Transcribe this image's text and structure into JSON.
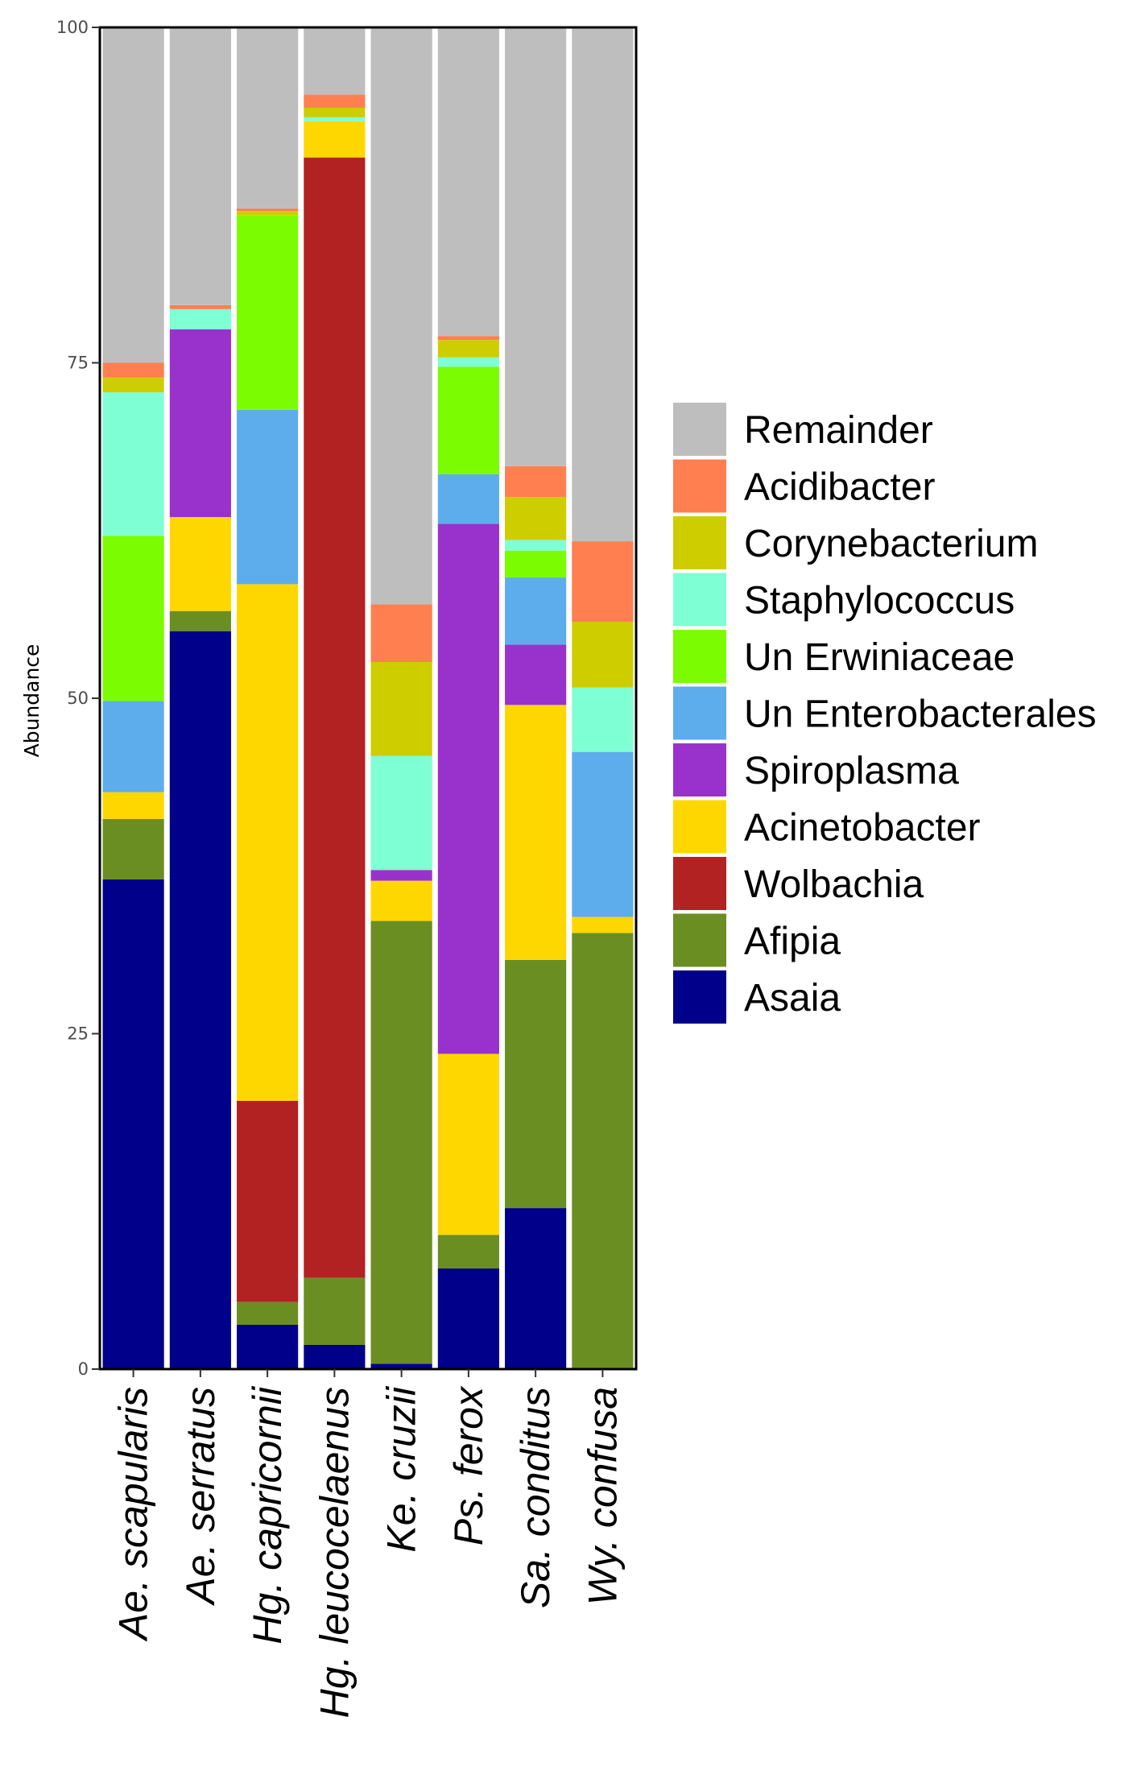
{
  "chart_data": {
    "type": "bar",
    "stacked": true,
    "title": "",
    "xlabel": "",
    "ylabel": "Abundance",
    "ylim": [
      0,
      100
    ],
    "yticks": [
      0,
      25,
      50,
      75,
      100
    ],
    "legend_position": "right",
    "categories": [
      "Ae. scapularis",
      "Ae. serratus",
      "Hg. capricornii",
      "Hg. leucocelaenus",
      "Ke. cruzii",
      "Ps. ferox",
      "Sa. conditus",
      "Wy. confusa"
    ],
    "series": [
      {
        "name": "Asaia",
        "color": "#00008B",
        "values": [
          36.5,
          55,
          3.3,
          1.8,
          0.4,
          7.5,
          12,
          0
        ]
      },
      {
        "name": "Afipia",
        "color": "#6B8E23",
        "values": [
          4.5,
          1.5,
          1.7,
          5,
          33,
          2.5,
          18.5,
          32.5
        ]
      },
      {
        "name": "Wolbachia",
        "color": "#B22222",
        "values": [
          0,
          0,
          15,
          83.5,
          0,
          0,
          0,
          0
        ]
      },
      {
        "name": "Acinetobacter",
        "color": "#FFD700",
        "values": [
          2,
          7,
          38.5,
          2.7,
          3,
          13.5,
          19,
          1.2
        ]
      },
      {
        "name": "Spiroplasma",
        "color": "#9932CC",
        "values": [
          0,
          14,
          0,
          0,
          0.8,
          39.5,
          4.5,
          0
        ]
      },
      {
        "name": "Un Enterobacterales",
        "color": "#5DADEC",
        "values": [
          6.8,
          0,
          13,
          0,
          0,
          3.7,
          5,
          12.3
        ]
      },
      {
        "name": "Un Erwiniaceae",
        "color": "#7CFC00",
        "values": [
          12.3,
          0,
          14.5,
          0,
          0,
          8,
          2,
          0
        ]
      },
      {
        "name": "Staphylococcus",
        "color": "#7FFFD4",
        "values": [
          10.7,
          1.5,
          0,
          0.3,
          8.5,
          0.7,
          0.8,
          4.8
        ]
      },
      {
        "name": "Corynebacterium",
        "color": "#CDCD00",
        "values": [
          1.1,
          0,
          0.3,
          0.7,
          7,
          1.3,
          3.2,
          4.9
        ]
      },
      {
        "name": "Acidibacter",
        "color": "#FF7F50",
        "values": [
          1.1,
          0.3,
          0.2,
          1,
          4.3,
          0.3,
          2.3,
          6
        ]
      },
      {
        "name": "Remainder",
        "color": "#BEBEBE",
        "values": [
          25,
          20.7,
          13.5,
          5,
          43,
          23,
          32.7,
          38.3
        ]
      }
    ],
    "legend_order": [
      "Remainder",
      "Acidibacter",
      "Corynebacterium",
      "Staphylococcus",
      "Un Erwiniaceae",
      "Un Enterobacterales",
      "Spiroplasma",
      "Acinetobacter",
      "Wolbachia",
      "Afipia",
      "Asaia"
    ]
  }
}
